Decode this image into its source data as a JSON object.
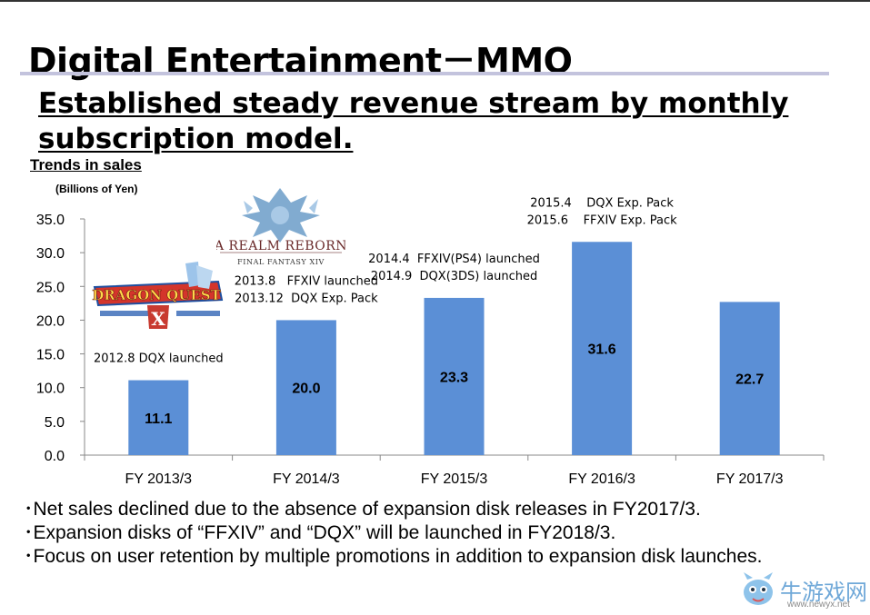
{
  "header": {
    "title": "Digital Entertainment－MMO",
    "headline": "Established steady revenue stream by monthly subscription model."
  },
  "chart_data": {
    "type": "bar",
    "title": "Trends in sales",
    "ylabel": "(Billions of Yen)",
    "xlabel": "",
    "categories": [
      "FY 2013/3",
      "FY 2014/3",
      "FY 2015/3",
      "FY 2016/3",
      "FY 2017/3"
    ],
    "values": [
      11.1,
      20.0,
      23.3,
      31.6,
      22.7
    ],
    "value_labels": [
      "11.1",
      "20.0",
      "23.3",
      "31.6",
      "22.7"
    ],
    "ylim": [
      0,
      35
    ],
    "yticks": [
      "0.0",
      "5.0",
      "10.0",
      "15.0",
      "20.0",
      "25.0",
      "30.0",
      "35.0"
    ],
    "grid": false,
    "bar_color": "#5b8fd6",
    "annotations": [
      [
        "2012.8 DQX launched"
      ],
      [
        "2013.8   FFXIV launched",
        "2013.12  DQX Exp. Pack"
      ],
      [
        "2014.4  FFXIV(PS4) launched",
        "2014.9  DQX(3DS) launched"
      ],
      [
        "2015.4    DQX Exp. Pack",
        "2015.6    FFXIV Exp. Pack"
      ],
      []
    ]
  },
  "bullets": [
    "･Net sales declined due to the absence of expansion disk releases in FY2017/3.",
    "･Expansion disks of “FFXIV” and “DQX” will be launched in FY2018/3.",
    "･Focus on user retention by multiple promotions in addition to expansion disk launches."
  ],
  "logos": {
    "dqx": "DRAGON QUEST X",
    "ffxiv_top": "A REALM REBORN",
    "ffxiv_bottom": "FINAL FANTASY XIV"
  },
  "watermark": {
    "text": "牛游戏网",
    "url": "www.newyx.net"
  }
}
